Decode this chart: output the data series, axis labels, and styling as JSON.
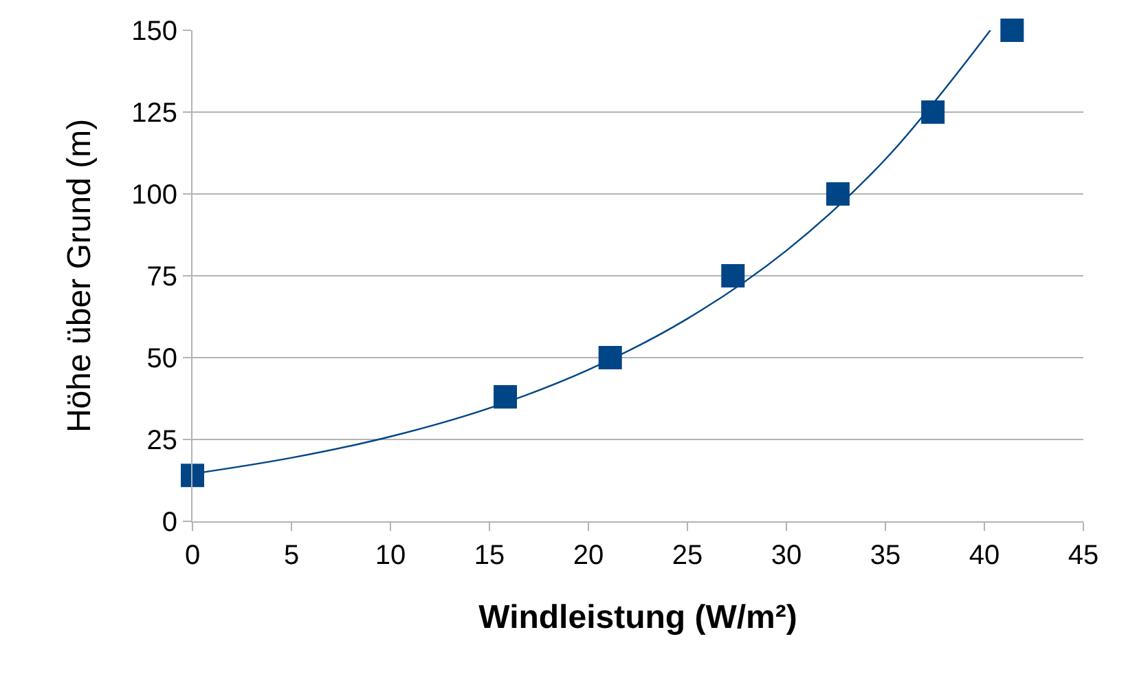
{
  "chart_data": {
    "type": "scatter",
    "xlabel": "Windleistung (W/m²)",
    "ylabel": "Höhe über Grund (m)",
    "xlim": [
      0,
      45
    ],
    "xticks": [
      0,
      5,
      10,
      15,
      20,
      25,
      30,
      35,
      40,
      45
    ],
    "ylim": [
      0,
      150
    ],
    "yticks": [
      0,
      25,
      50,
      75,
      100,
      125,
      150
    ],
    "grid": "y",
    "legend": false,
    "marker": "square",
    "series": [
      {
        "color": "#004586",
        "x": [
          0,
          15.8,
          21.1,
          27.3,
          32.6,
          37.4,
          41.4
        ],
        "values": [
          14,
          38,
          50,
          75,
          100,
          125,
          150
        ]
      },
      {
        "type": "line",
        "color": "#004586",
        "marker": "none",
        "x": [
          0,
          5,
          10,
          15,
          20,
          25,
          30,
          35,
          40.3
        ],
        "values": [
          14.5,
          19.4,
          25.9,
          34.6,
          46.3,
          61.9,
          82.7,
          110.6,
          150
        ]
      }
    ]
  }
}
